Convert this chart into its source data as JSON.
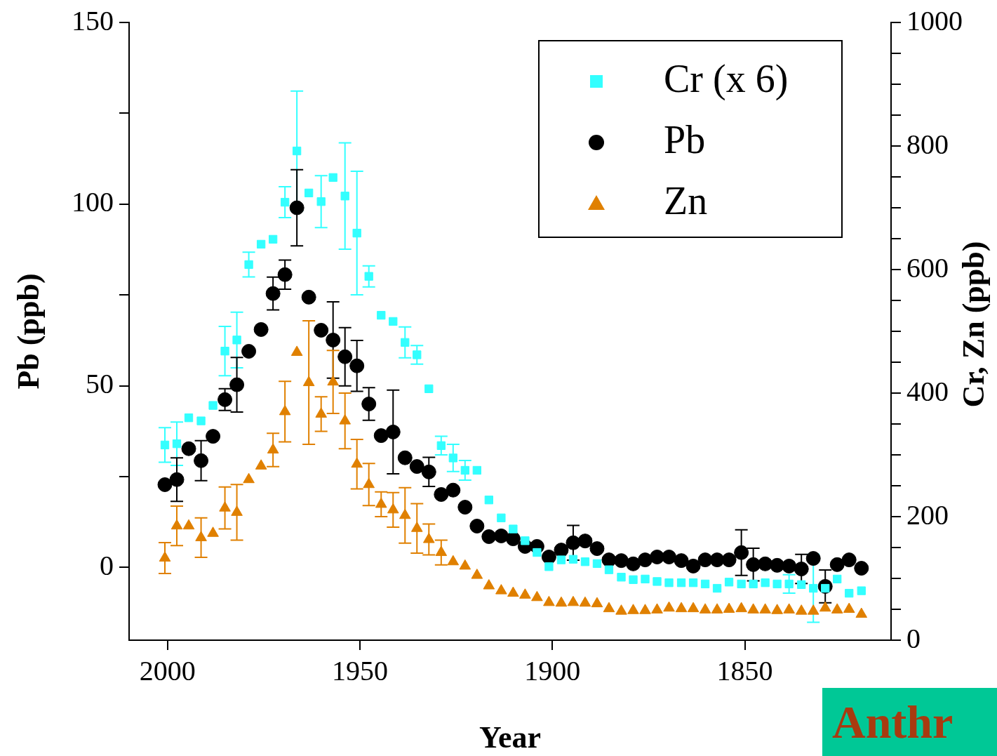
{
  "chart_data": {
    "type": "scatter",
    "xlabel": "Year",
    "ylabel": "Pb (ppb)",
    "y2label": "Cr, Zn (ppb)",
    "annotations": [
      "Anthr"
    ],
    "x": [
      2000.7,
      1997.6,
      1994.5,
      1991.3,
      1988.2,
      1985.1,
      1982.0,
      1978.9,
      1975.7,
      1972.6,
      1969.5,
      1966.4,
      1963.3,
      1960.1,
      1957.0,
      1953.9,
      1950.8,
      1947.7,
      1944.5,
      1941.4,
      1938.3,
      1935.2,
      1932.1,
      1928.9,
      1925.8,
      1922.7,
      1919.6,
      1916.5,
      1913.3,
      1910.2,
      1907.1,
      1904.0,
      1900.9,
      1897.7,
      1894.6,
      1891.5,
      1888.4,
      1885.3,
      1882.1,
      1879.0,
      1875.9,
      1872.8,
      1869.7,
      1866.5,
      1863.4,
      1860.3,
      1857.2,
      1854.1,
      1850.9,
      1847.8,
      1844.7,
      1841.6,
      1838.5,
      1835.3,
      1832.2,
      1829.1,
      1826.0,
      1822.9,
      1819.7
    ],
    "xlim": [
      2010,
      1812
    ],
    "xticks": [
      2000,
      1950,
      1900,
      1850
    ],
    "ylim": [
      -20,
      150
    ],
    "yticks": [
      0,
      {
        "value": 25,
        "label": null
      },
      50,
      {
        "value": 75,
        "label": null
      },
      100,
      {
        "value": 125,
        "label": null
      },
      150
    ],
    "y2lim": [
      0,
      1000
    ],
    "y2ticks": [
      0,
      {
        "value": 50,
        "label": null
      },
      {
        "value": 100,
        "label": null
      },
      {
        "value": 150,
        "label": null
      },
      200,
      {
        "value": 250,
        "label": null
      },
      {
        "value": 300,
        "label": null
      },
      {
        "value": 350,
        "label": null
      },
      400,
      {
        "value": 450,
        "label": null
      },
      {
        "value": 500,
        "label": null
      },
      {
        "value": 550,
        "label": null
      },
      600,
      {
        "value": 650,
        "label": null
      },
      {
        "value": 700,
        "label": null
      },
      {
        "value": 750,
        "label": null
      },
      800,
      {
        "value": 850,
        "label": null
      },
      {
        "value": 900,
        "label": null
      },
      {
        "value": 950,
        "label": null
      },
      1000
    ],
    "legend": "top right",
    "series": [
      {
        "name": "Cr (x 6)",
        "color": "#33ffff",
        "marker": "square",
        "axis": "y2",
        "values": [
          316,
          318,
          360,
          355,
          380,
          468,
          486,
          608,
          641,
          649,
          709,
          792,
          724,
          710,
          749,
          719,
          659,
          589,
          526,
          516,
          482,
          462,
          407,
          315,
          295,
          275,
          275,
          227,
          198,
          180,
          161,
          142,
          119,
          130,
          131,
          127,
          124,
          114,
          102,
          98,
          99,
          95,
          93,
          93,
          93,
          91,
          84,
          94,
          91,
          91,
          93,
          91,
          91,
          90,
          84,
          84,
          99,
          76,
          80
        ],
        "errors": [
          28,
          35,
          null,
          null,
          null,
          40,
          45,
          20,
          null,
          null,
          25,
          97,
          null,
          42,
          null,
          86,
          100,
          17,
          null,
          null,
          25,
          15,
          null,
          15,
          22,
          16,
          null,
          null,
          null,
          null,
          null,
          null,
          null,
          null,
          null,
          null,
          null,
          null,
          null,
          null,
          null,
          null,
          null,
          null,
          null,
          null,
          null,
          null,
          null,
          null,
          null,
          null,
          15,
          null,
          55,
          null,
          null,
          null,
          null
        ]
      },
      {
        "name": "Pb",
        "color": "#000000",
        "marker": "circle",
        "values": [
          22.8,
          24.2,
          32.7,
          29.4,
          36.1,
          46.2,
          50.3,
          59.5,
          65.5,
          75.4,
          80.6,
          99.0,
          74.4,
          65.3,
          62.6,
          58.0,
          55.5,
          45.0,
          36.3,
          37.3,
          30.2,
          27.8,
          26.3,
          20.1,
          21.3,
          16.6,
          11.4,
          8.5,
          8.7,
          7.9,
          5.8,
          5.8,
          2.9,
          4.8,
          6.8,
          7.3,
          5.2,
          2.1,
          1.9,
          1.0,
          2.1,
          2.9,
          2.9,
          1.9,
          0.4,
          2.1,
          2.1,
          2.1,
          4.1,
          0.8,
          1.0,
          0.6,
          0.4,
          -0.4,
          2.5,
          -5.2,
          0.8,
          2.1,
          -0.2
        ],
        "errors": [
          null,
          6,
          null,
          5.5,
          null,
          3,
          7.5,
          null,
          null,
          4.5,
          4,
          10.5,
          null,
          null,
          10.5,
          8,
          7,
          4.5,
          null,
          11.5,
          null,
          null,
          4,
          null,
          null,
          null,
          null,
          null,
          null,
          null,
          null,
          null,
          null,
          null,
          4.8,
          null,
          null,
          null,
          null,
          null,
          null,
          null,
          null,
          null,
          null,
          null,
          null,
          null,
          6.3,
          4.5,
          null,
          null,
          null,
          4,
          null,
          4.5,
          null,
          null,
          null
        ]
      },
      {
        "name": "Zn",
        "color": "#e08000",
        "marker": "triangle",
        "axis": "y2",
        "values": [
          133,
          185,
          185,
          166,
          173,
          214,
          207,
          260,
          282,
          308,
          370,
          466,
          417,
          366,
          418,
          355,
          285,
          252,
          220,
          211,
          202,
          181,
          163,
          142,
          127,
          120,
          105,
          88,
          80,
          76,
          73,
          69,
          61,
          60,
          61,
          60,
          59,
          51,
          47,
          48,
          48,
          49,
          52,
          51,
          51,
          49,
          49,
          50,
          51,
          49,
          49,
          48,
          49,
          47,
          47,
          52,
          49,
          50,
          42
        ],
        "errors": [
          25,
          32,
          null,
          32,
          null,
          34,
          45,
          null,
          null,
          27,
          49,
          null,
          100,
          28,
          51,
          45,
          40,
          34,
          20,
          28,
          45,
          40,
          25,
          20,
          null,
          null,
          null,
          null,
          null,
          null,
          null,
          null,
          null,
          null,
          null,
          null,
          null,
          null,
          null,
          null,
          null,
          null,
          null,
          null,
          null,
          null,
          null,
          null,
          null,
          null,
          null,
          null,
          null,
          null,
          null,
          null,
          null,
          null,
          null
        ]
      }
    ]
  }
}
